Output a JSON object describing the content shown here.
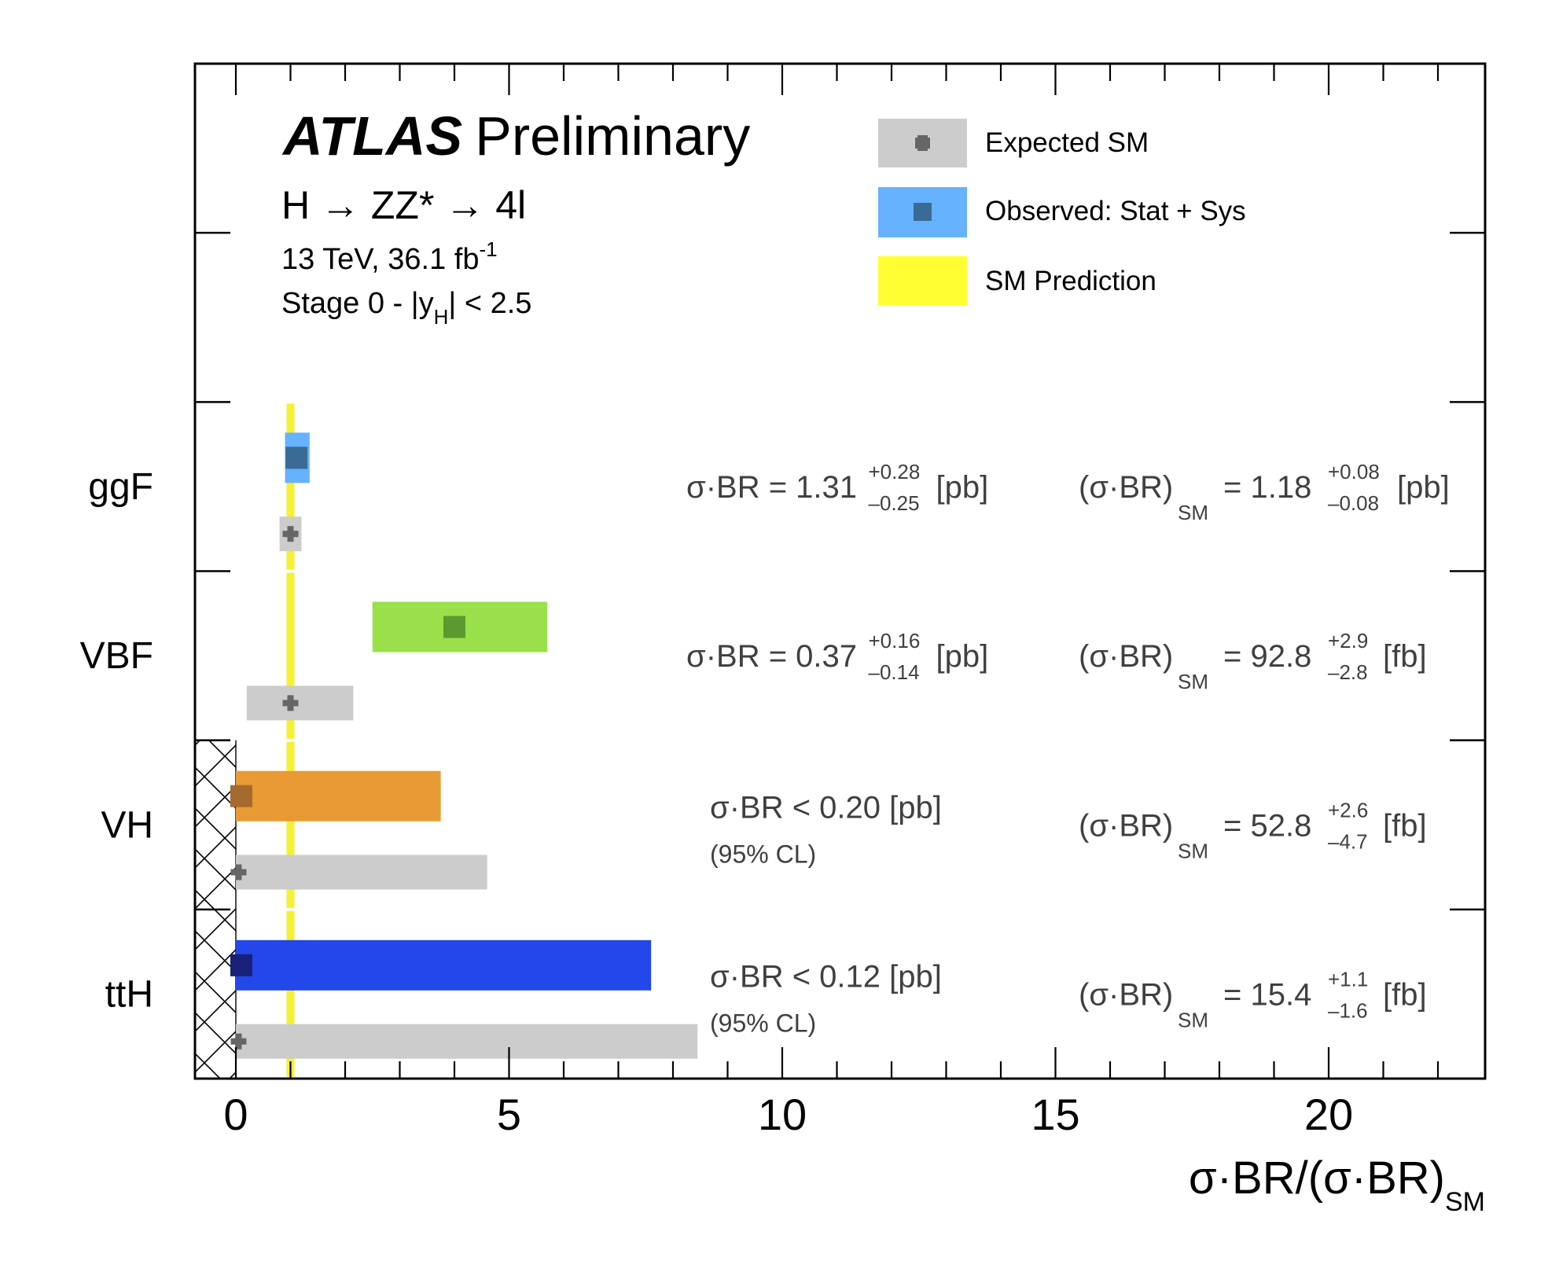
{
  "chart_data": {
    "type": "bar",
    "orientation": "horizontal",
    "title": "ATLAS Preliminary",
    "header": {
      "brand": "ATLAS",
      "brand_suffix": "Preliminary",
      "process": "H → ZZ* → 4l",
      "energy": "13 TeV, 36.1 fb",
      "energy_sup": "-1",
      "stage_main": "Stage 0 - |y",
      "stage_sub": "H",
      "stage_tail": "| < 2.5"
    },
    "xlabel": {
      "main": "σ·BR/(σ·BR)",
      "sub": "SM"
    },
    "xlim": [
      -0.75,
      23
    ],
    "x_ticks": [
      0,
      5,
      10,
      15,
      20
    ],
    "x_tick_labels": [
      "0",
      "5",
      "10",
      "15",
      "20"
    ],
    "x_minor_step": 1,
    "sm_prediction": 1.0,
    "legend": {
      "placement": "top-right",
      "entries": [
        {
          "label": "Expected SM",
          "kind": "expected"
        },
        {
          "label": "Observed: Stat + Sys",
          "kind": "observed"
        },
        {
          "label": "SM Prediction",
          "kind": "sm"
        }
      ]
    },
    "categories": [
      "ggF",
      "VBF",
      "VH",
      "ttH"
    ],
    "series": [
      {
        "name": "Observed: Stat + Sys",
        "points": [
          {
            "category": "ggF",
            "central": 1.11,
            "low": 0.9,
            "high": 1.35,
            "upper_limit": false,
            "color": "#66b2ff",
            "marker": "#3a6a96"
          },
          {
            "category": "VBF",
            "central": 4.0,
            "low": 2.5,
            "high": 5.7,
            "upper_limit": false,
            "color": "#99e04a",
            "marker": "#5c9a30"
          },
          {
            "category": "VH",
            "central": 0.1,
            "low": 0.0,
            "high": 3.75,
            "upper_limit": true,
            "color": "#e89a35",
            "marker": "#a56a30"
          },
          {
            "category": "ttH",
            "central": 0.1,
            "low": 0.0,
            "high": 7.6,
            "upper_limit": true,
            "color": "#2347e8",
            "marker": "#1a1f7a"
          }
        ]
      },
      {
        "name": "Expected SM",
        "points": [
          {
            "category": "ggF",
            "central": 1.0,
            "low": 0.8,
            "high": 1.2
          },
          {
            "category": "VBF",
            "central": 1.0,
            "low": 0.2,
            "high": 2.15
          },
          {
            "category": "VH",
            "central": 0.05,
            "low": 0.0,
            "high": 4.6
          },
          {
            "category": "ttH",
            "central": 0.05,
            "low": 0.0,
            "high": 8.45
          }
        ]
      }
    ],
    "measurements": [
      {
        "category": "ggF",
        "left": {
          "type": "measured",
          "prefix": "σ·BR = 1.31",
          "up": "+0.28",
          "down": "–0.25",
          "unit": "[pb]"
        },
        "right": {
          "prefix": "(σ·BR)",
          "sub": "SM",
          "value": "= 1.18",
          "up": "+0.08",
          "down": "–0.08",
          "unit": "[pb]"
        }
      },
      {
        "category": "VBF",
        "left": {
          "type": "measured",
          "prefix": "σ·BR = 0.37",
          "up": "+0.16",
          "down": "–0.14",
          "unit": "[pb]"
        },
        "right": {
          "prefix": "(σ·BR)",
          "sub": "SM",
          "value": "= 92.8",
          "up": "+2.9",
          "down": "–2.8",
          "unit": "[fb]"
        }
      },
      {
        "category": "VH",
        "left": {
          "type": "limit",
          "text": "σ·BR < 0.20  [pb]",
          "cl": "(95% CL)"
        },
        "right": {
          "prefix": "(σ·BR)",
          "sub": "SM",
          "value": "= 52.8",
          "up": "+2.6",
          "down": "–4.7",
          "unit": "[fb]"
        }
      },
      {
        "category": "ttH",
        "left": {
          "type": "limit",
          "text": "σ·BR < 0.12  [pb]",
          "cl": "(95% CL)"
        },
        "right": {
          "prefix": "(σ·BR)",
          "sub": "SM",
          "value": "= 15.4",
          "up": "+1.1",
          "down": "–1.6",
          "unit": "[fb]"
        }
      }
    ],
    "colors": {
      "expected": "#cccccc",
      "expected_marker": "#666666",
      "observed_legend": "#66b2ff",
      "sm": "#ffff33",
      "sm_line": "#f5f032",
      "frame": "#000000",
      "annotation": "#404040"
    }
  }
}
